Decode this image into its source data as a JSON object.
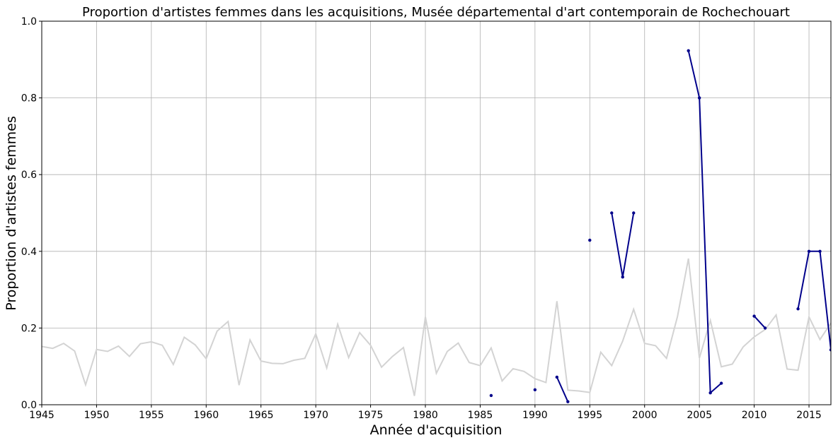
{
  "chart_data": {
    "type": "line",
    "title": "Proportion d'artistes femmes dans les acquisitions, Musée départemental d'art contemporain de Rochechouart",
    "xlabel": "Année d'acquisition",
    "ylabel": "Proportion d'artistes femmes",
    "xlim": [
      1945,
      2017
    ],
    "ylim": [
      0,
      1.0
    ],
    "xticks": [
      "1945",
      "1950",
      "1955",
      "1960",
      "1965",
      "1970",
      "1975",
      "1980",
      "1985",
      "1990",
      "1995",
      "2000",
      "2005",
      "2010",
      "2015"
    ],
    "yticks": [
      "0.0",
      "0.2",
      "0.4",
      "0.6",
      "0.8",
      "1.0"
    ],
    "grid": true,
    "series": [
      {
        "color": "#d3d3d3",
        "x": [
          1945,
          1946,
          1947,
          1948,
          1949,
          1950,
          1951,
          1952,
          1953,
          1954,
          1955,
          1956,
          1957,
          1958,
          1959,
          1960,
          1961,
          1962,
          1963,
          1964,
          1965,
          1966,
          1967,
          1968,
          1969,
          1970,
          1971,
          1972,
          1973,
          1974,
          1975,
          1976,
          1977,
          1978,
          1979,
          1980,
          1981,
          1982,
          1983,
          1984,
          1985,
          1986,
          1987,
          1988,
          1989,
          1990,
          1991,
          1992,
          1993,
          1994,
          1995,
          1996,
          1997,
          1998,
          1999,
          2000,
          2001,
          2002,
          2003,
          2004,
          2005,
          2006,
          2007,
          2008,
          2009,
          2010,
          2011,
          2012,
          2013,
          2014,
          2015,
          2016,
          2017
        ],
        "y": [
          0.152,
          0.147,
          0.16,
          0.14,
          0.052,
          0.144,
          0.139,
          0.153,
          0.126,
          0.159,
          0.164,
          0.155,
          0.105,
          0.176,
          0.156,
          0.12,
          0.192,
          0.217,
          0.051,
          0.169,
          0.114,
          0.108,
          0.107,
          0.116,
          0.121,
          0.185,
          0.096,
          0.21,
          0.123,
          0.188,
          0.155,
          0.098,
          0.126,
          0.149,
          0.023,
          0.229,
          0.082,
          0.139,
          0.161,
          0.11,
          0.102,
          0.148,
          0.062,
          0.094,
          0.087,
          0.068,
          0.058,
          0.27,
          0.038,
          0.036,
          0.032,
          0.137,
          0.102,
          0.166,
          0.249,
          0.16,
          0.154,
          0.121,
          0.23,
          0.381,
          0.122,
          0.22,
          0.099,
          0.106,
          0.151,
          0.177,
          0.196,
          0.234,
          0.093,
          0.09,
          0.229,
          0.17,
          0.213
        ]
      },
      {
        "color": "#00008b",
        "x": [
          1986,
          1990,
          1992,
          1993,
          1995,
          1997,
          1998,
          1999,
          2004,
          2005,
          2006,
          2007,
          2010,
          2011,
          2014,
          2015,
          2016,
          2017
        ],
        "y": [
          0.024,
          0.039,
          0.072,
          0.008,
          0.429,
          0.5,
          0.333,
          0.5,
          0.923,
          0.8,
          0.031,
          0.056,
          0.231,
          0.2,
          0.25,
          0.4,
          0.4,
          0.143
        ],
        "segments": [
          [
            0
          ],
          [
            1
          ],
          [
            2,
            3
          ],
          [
            4
          ],
          [
            5,
            6,
            7
          ],
          [
            8,
            9,
            10,
            11
          ],
          [
            12,
            13
          ],
          [
            14,
            15,
            16,
            17
          ]
        ]
      }
    ]
  }
}
